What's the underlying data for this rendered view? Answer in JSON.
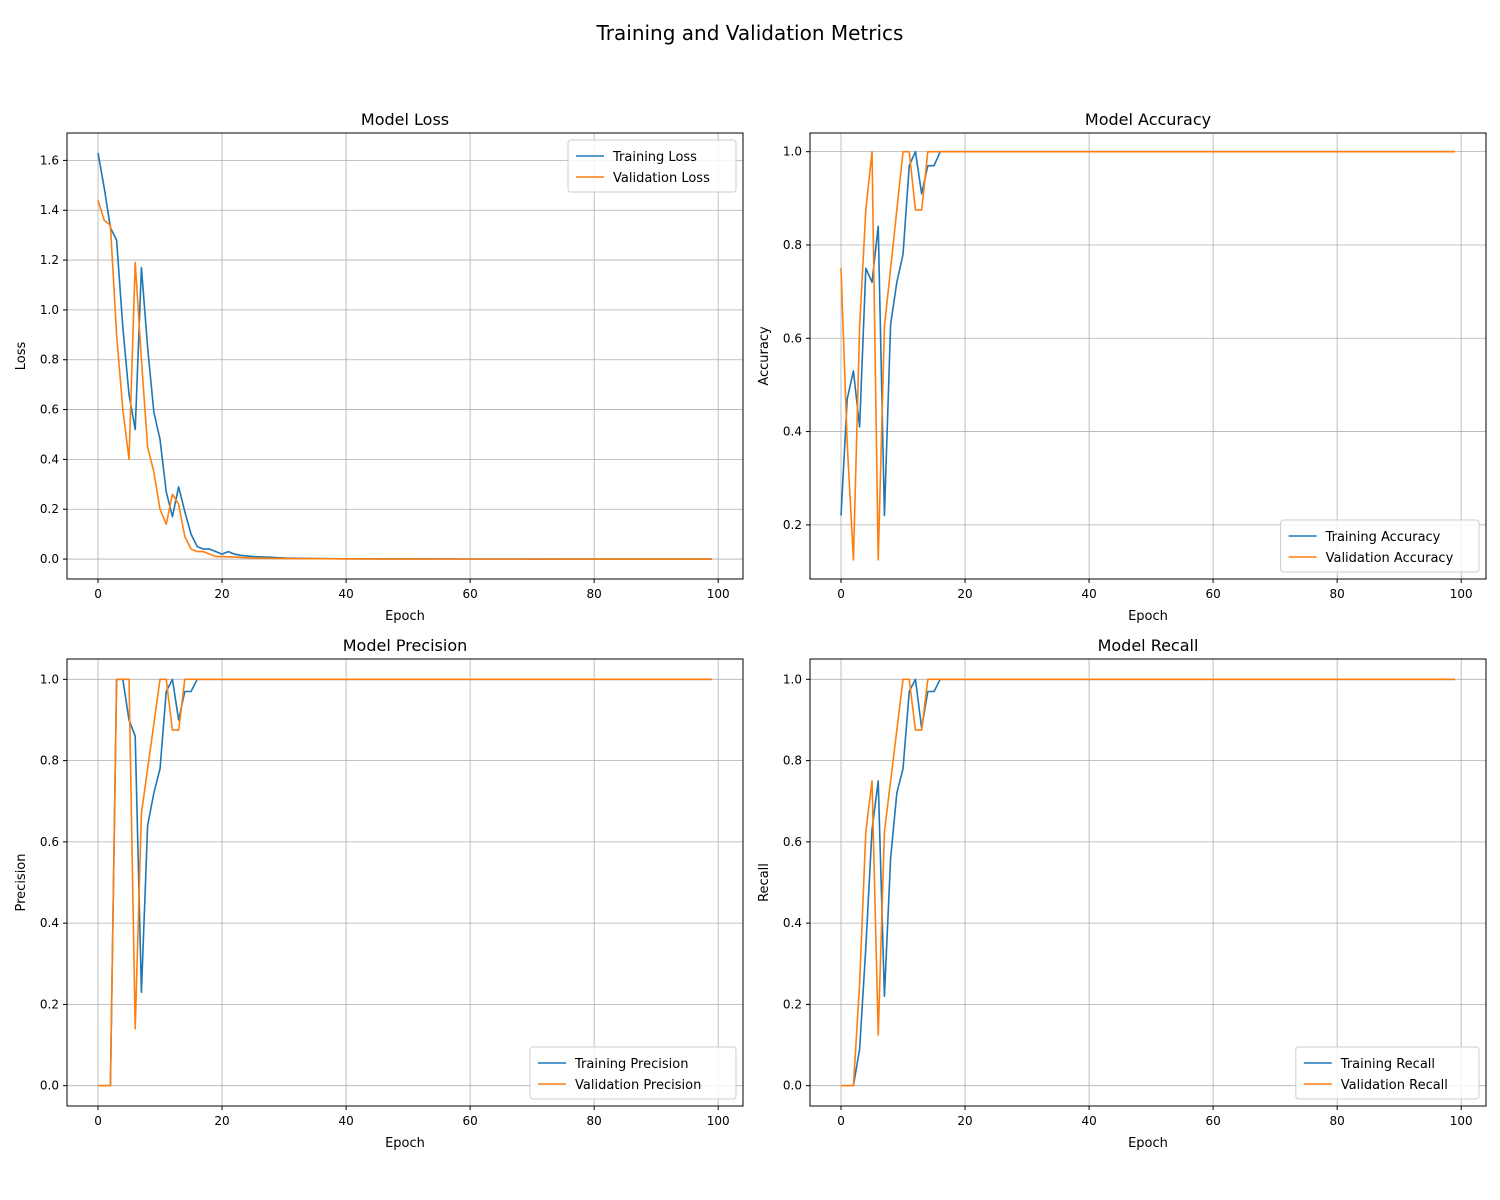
{
  "suptitle": "Training and Validation Metrics",
  "colors": {
    "training": "#1f77b4",
    "validation": "#ff7f0e",
    "grid": "#b0b0b0"
  },
  "chart_data": [
    {
      "type": "line",
      "title": "Model Loss",
      "xlabel": "Epoch",
      "ylabel": "Loss",
      "xlim": [
        -5,
        104
      ],
      "ylim": [
        -0.08,
        1.71
      ],
      "xticks": [
        0,
        20,
        40,
        60,
        80,
        100
      ],
      "yticks": [
        0.0,
        0.2,
        0.4,
        0.6,
        0.8,
        1.0,
        1.2,
        1.4,
        1.6
      ],
      "ytick_decimals": 1,
      "grid": true,
      "legend_loc": "top-right",
      "series": [
        {
          "name": "Training Loss",
          "points": [
            [
              0,
              1.63
            ],
            [
              1,
              1.49
            ],
            [
              2,
              1.33
            ],
            [
              3,
              1.28
            ],
            [
              4,
              0.93
            ],
            [
              5,
              0.66
            ],
            [
              6,
              0.52
            ],
            [
              7,
              1.17
            ],
            [
              8,
              0.85
            ],
            [
              9,
              0.59
            ],
            [
              10,
              0.48
            ],
            [
              11,
              0.27
            ],
            [
              12,
              0.17
            ],
            [
              13,
              0.29
            ],
            [
              14,
              0.19
            ],
            [
              15,
              0.1
            ],
            [
              16,
              0.05
            ],
            [
              17,
              0.04
            ],
            [
              18,
              0.04
            ],
            [
              19,
              0.03
            ],
            [
              20,
              0.02
            ],
            [
              21,
              0.03
            ],
            [
              22,
              0.02
            ],
            [
              23,
              0.015
            ],
            [
              25,
              0.01
            ],
            [
              28,
              0.007
            ],
            [
              30,
              0.004
            ],
            [
              35,
              0.002
            ],
            [
              40,
              0.001
            ],
            [
              50,
              0.0005
            ],
            [
              60,
              0.0003
            ],
            [
              70,
              0.0002
            ],
            [
              80,
              0.0001
            ],
            [
              90,
              0.0001
            ],
            [
              99,
              0.0001
            ]
          ]
        },
        {
          "name": "Validation Loss",
          "points": [
            [
              0,
              1.44
            ],
            [
              1,
              1.36
            ],
            [
              2,
              1.34
            ],
            [
              3,
              0.9
            ],
            [
              4,
              0.6
            ],
            [
              5,
              0.4
            ],
            [
              6,
              1.19
            ],
            [
              7,
              0.8
            ],
            [
              8,
              0.45
            ],
            [
              9,
              0.35
            ],
            [
              10,
              0.2
            ],
            [
              11,
              0.14
            ],
            [
              12,
              0.26
            ],
            [
              13,
              0.22
            ],
            [
              14,
              0.09
            ],
            [
              15,
              0.04
            ],
            [
              16,
              0.03
            ],
            [
              17,
              0.03
            ],
            [
              18,
              0.02
            ],
            [
              19,
              0.01
            ],
            [
              20,
              0.01
            ],
            [
              22,
              0.008
            ],
            [
              25,
              0.004
            ],
            [
              30,
              0.002
            ],
            [
              40,
              0.001
            ],
            [
              50,
              0.0005
            ],
            [
              60,
              0.0003
            ],
            [
              80,
              0.0001
            ],
            [
              99,
              0.0001
            ]
          ]
        }
      ]
    },
    {
      "type": "line",
      "title": "Model Accuracy",
      "xlabel": "Epoch",
      "ylabel": "Accuracy",
      "xlim": [
        -5,
        104
      ],
      "ylim": [
        0.084,
        1.04
      ],
      "xticks": [
        0,
        20,
        40,
        60,
        80,
        100
      ],
      "yticks": [
        0.2,
        0.4,
        0.6,
        0.8,
        1.0
      ],
      "ytick_decimals": 1,
      "grid": true,
      "legend_loc": "bottom-right",
      "series": [
        {
          "name": "Training Accuracy",
          "points": [
            [
              0,
              0.22
            ],
            [
              1,
              0.47
            ],
            [
              2,
              0.53
            ],
            [
              3,
              0.41
            ],
            [
              4,
              0.75
            ],
            [
              5,
              0.72
            ],
            [
              6,
              0.84
            ],
            [
              7,
              0.22
            ],
            [
              8,
              0.63
            ],
            [
              9,
              0.72
            ],
            [
              10,
              0.78
            ],
            [
              11,
              0.97
            ],
            [
              12,
              1.0
            ],
            [
              13,
              0.91
            ],
            [
              14,
              0.97
            ],
            [
              15,
              0.97
            ],
            [
              16,
              1.0
            ],
            [
              99,
              1.0
            ]
          ]
        },
        {
          "name": "Validation Accuracy",
          "points": [
            [
              0,
              0.75
            ],
            [
              1,
              0.375
            ],
            [
              2,
              0.125
            ],
            [
              3,
              0.625
            ],
            [
              4,
              0.875
            ],
            [
              5,
              1.0
            ],
            [
              6,
              0.125
            ],
            [
              7,
              0.625
            ],
            [
              8,
              0.75
            ],
            [
              9,
              0.875
            ],
            [
              10,
              1.0
            ],
            [
              11,
              1.0
            ],
            [
              12,
              0.875
            ],
            [
              13,
              0.875
            ],
            [
              14,
              1.0
            ],
            [
              99,
              1.0
            ]
          ]
        }
      ]
    },
    {
      "type": "line",
      "title": "Model Precision",
      "xlabel": "Epoch",
      "ylabel": "Precision",
      "xlim": [
        -5,
        104
      ],
      "ylim": [
        -0.05,
        1.05
      ],
      "xticks": [
        0,
        20,
        40,
        60,
        80,
        100
      ],
      "yticks": [
        0.0,
        0.2,
        0.4,
        0.6,
        0.8,
        1.0
      ],
      "ytick_decimals": 1,
      "grid": true,
      "legend_loc": "bottom-right",
      "series": [
        {
          "name": "Training Precision",
          "points": [
            [
              0,
              0.0
            ],
            [
              1,
              0.0
            ],
            [
              2,
              0.0
            ],
            [
              3,
              1.0
            ],
            [
              4,
              1.0
            ],
            [
              5,
              0.9
            ],
            [
              6,
              0.86
            ],
            [
              7,
              0.23
            ],
            [
              8,
              0.64
            ],
            [
              9,
              0.72
            ],
            [
              10,
              0.78
            ],
            [
              11,
              0.97
            ],
            [
              12,
              1.0
            ],
            [
              13,
              0.9
            ],
            [
              14,
              0.97
            ],
            [
              15,
              0.97
            ],
            [
              16,
              1.0
            ],
            [
              99,
              1.0
            ]
          ]
        },
        {
          "name": "Validation Precision",
          "points": [
            [
              0,
              0.0
            ],
            [
              1,
              0.0
            ],
            [
              2,
              0.0
            ],
            [
              3,
              1.0
            ],
            [
              4,
              1.0
            ],
            [
              5,
              1.0
            ],
            [
              6,
              0.14
            ],
            [
              7,
              0.67
            ],
            [
              8,
              0.78
            ],
            [
              9,
              0.89
            ],
            [
              10,
              1.0
            ],
            [
              11,
              1.0
            ],
            [
              12,
              0.875
            ],
            [
              13,
              0.875
            ],
            [
              14,
              1.0
            ],
            [
              99,
              1.0
            ]
          ]
        }
      ]
    },
    {
      "type": "line",
      "title": "Model Recall",
      "xlabel": "Epoch",
      "ylabel": "Recall",
      "xlim": [
        -5,
        104
      ],
      "ylim": [
        -0.05,
        1.05
      ],
      "xticks": [
        0,
        20,
        40,
        60,
        80,
        100
      ],
      "yticks": [
        0.0,
        0.2,
        0.4,
        0.6,
        0.8,
        1.0
      ],
      "ytick_decimals": 1,
      "grid": true,
      "legend_loc": "bottom-right",
      "series": [
        {
          "name": "Training Recall",
          "points": [
            [
              0,
              0.0
            ],
            [
              1,
              0.0
            ],
            [
              2,
              0.0
            ],
            [
              3,
              0.09
            ],
            [
              4,
              0.34
            ],
            [
              5,
              0.63
            ],
            [
              6,
              0.75
            ],
            [
              7,
              0.22
            ],
            [
              8,
              0.56
            ],
            [
              9,
              0.72
            ],
            [
              10,
              0.78
            ],
            [
              11,
              0.97
            ],
            [
              12,
              1.0
            ],
            [
              13,
              0.88
            ],
            [
              14,
              0.97
            ],
            [
              15,
              0.97
            ],
            [
              16,
              1.0
            ],
            [
              99,
              1.0
            ]
          ]
        },
        {
          "name": "Validation Recall",
          "points": [
            [
              0,
              0.0
            ],
            [
              1,
              0.0
            ],
            [
              2,
              0.0
            ],
            [
              3,
              0.25
            ],
            [
              4,
              0.625
            ],
            [
              5,
              0.75
            ],
            [
              6,
              0.125
            ],
            [
              7,
              0.625
            ],
            [
              8,
              0.75
            ],
            [
              9,
              0.875
            ],
            [
              10,
              1.0
            ],
            [
              11,
              1.0
            ],
            [
              12,
              0.875
            ],
            [
              13,
              0.875
            ],
            [
              14,
              1.0
            ],
            [
              99,
              1.0
            ]
          ]
        }
      ]
    }
  ]
}
